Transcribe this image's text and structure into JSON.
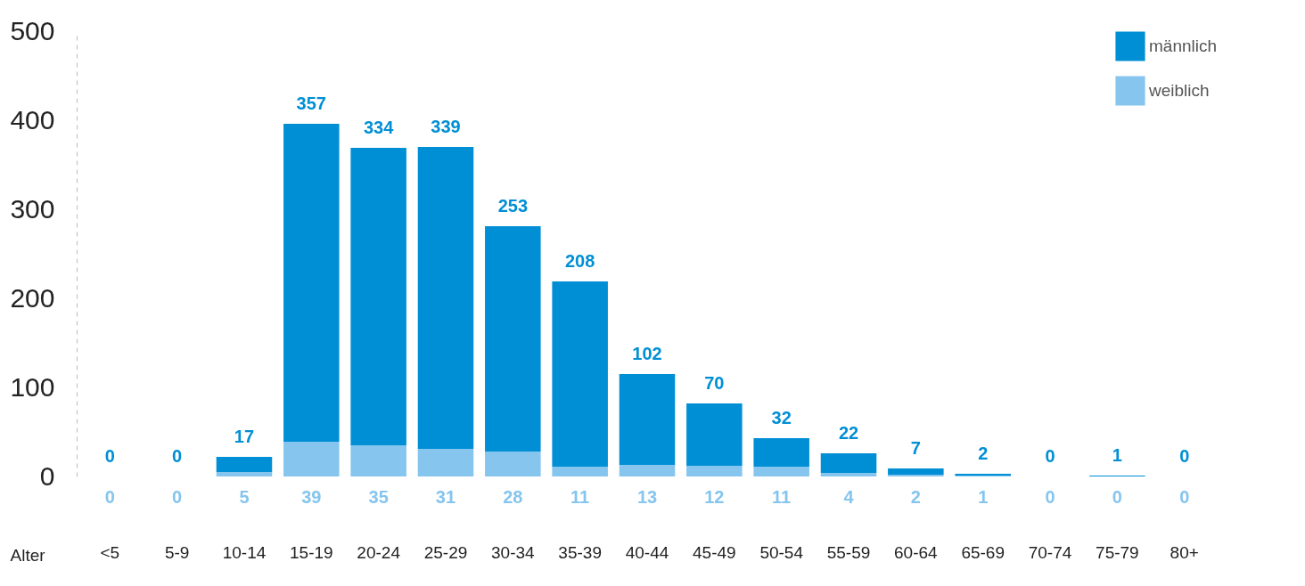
{
  "chart_data": {
    "type": "bar",
    "stacked": true,
    "xlabel": "Alter",
    "categories": [
      "<5",
      "5-9",
      "10-14",
      "15-19",
      "20-24",
      "25-29",
      "30-34",
      "35-39",
      "40-44",
      "45-49",
      "50-54",
      "55-59",
      "60-64",
      "65-69",
      "70-74",
      "75-79",
      "80+"
    ],
    "series": [
      {
        "name": "weiblich",
        "color": "#85c5ee",
        "values": [
          0,
          0,
          5,
          39,
          35,
          31,
          28,
          11,
          13,
          12,
          11,
          4,
          2,
          1,
          0,
          0,
          0
        ]
      },
      {
        "name": "männlich",
        "color": "#008fd5",
        "values": [
          0,
          0,
          17,
          357,
          334,
          339,
          253,
          208,
          102,
          70,
          32,
          22,
          7,
          2,
          0,
          1,
          0
        ]
      }
    ],
    "ylim": [
      0,
      500
    ],
    "yticks": [
      0,
      100,
      200,
      300,
      400,
      500
    ],
    "legend": "top right",
    "data_labels": true
  }
}
